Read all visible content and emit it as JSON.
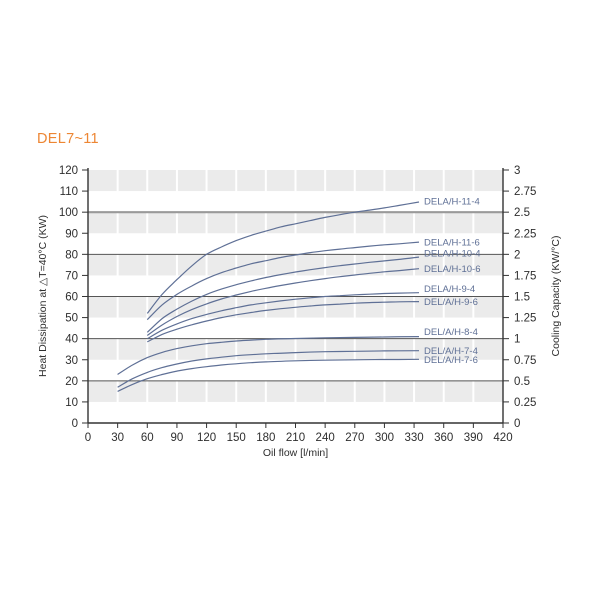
{
  "title": "DEL7~11",
  "title_color": "#ED8633",
  "chart_data": {
    "type": "line",
    "title": "DEL7~11",
    "xlabel": "Oil flow [l/min]",
    "ylabel_left": "Heat Dissipation at △T=40°C (KW)",
    "ylabel_right": "Cooling Capacity (KW/°C)",
    "xlim": [
      0,
      420
    ],
    "ylim_left": [
      0,
      120
    ],
    "ylim_right": [
      0,
      3
    ],
    "x_ticks": [
      0,
      30,
      60,
      90,
      120,
      150,
      180,
      210,
      240,
      270,
      300,
      330,
      360,
      390,
      420
    ],
    "y_left_ticks": [
      0,
      10,
      20,
      30,
      40,
      50,
      60,
      70,
      80,
      90,
      100,
      110,
      120
    ],
    "y_right_ticks": [
      "0",
      "0.25",
      "0.5",
      "0.75",
      "1",
      "1.25",
      "1.5",
      "1.75",
      "2",
      "2.25",
      "2.5",
      "2.75",
      "3"
    ],
    "grid": "banded",
    "band_ranges_kw": [
      [
        10,
        20
      ],
      [
        30,
        40
      ],
      [
        50,
        60
      ],
      [
        70,
        80
      ],
      [
        90,
        100
      ],
      [
        110,
        120
      ]
    ],
    "dark_gridlines_kw": [
      20,
      40,
      60,
      80
    ],
    "heavy_gridline_kw": 100,
    "band_color": "#ebebeb",
    "dark_line_color": "#555555",
    "heavy_line_color": "#9a9a9a",
    "axis_color": "#333333",
    "series_color": "#5f7096",
    "legend_position": "right-of-curve-ends",
    "series": [
      {
        "name": "DELA/H-11-4",
        "label_dy": 0,
        "points": [
          [
            60,
            52
          ],
          [
            75,
            61
          ],
          [
            90,
            68
          ],
          [
            105,
            74.5
          ],
          [
            120,
            80
          ],
          [
            135,
            83.5
          ],
          [
            150,
            86.5
          ],
          [
            165,
            89
          ],
          [
            180,
            91
          ],
          [
            195,
            93
          ],
          [
            210,
            94.5
          ],
          [
            225,
            96
          ],
          [
            240,
            97.5
          ],
          [
            255,
            98.8
          ],
          [
            270,
            100
          ],
          [
            285,
            101
          ],
          [
            300,
            102
          ],
          [
            315,
            103.2
          ],
          [
            335,
            104.8
          ]
        ]
      },
      {
        "name": "DELA/H-11-6",
        "label_dy": 1,
        "points": [
          [
            60,
            49
          ],
          [
            75,
            56
          ],
          [
            90,
            61
          ],
          [
            105,
            65
          ],
          [
            120,
            68.5
          ],
          [
            135,
            71.3
          ],
          [
            150,
            73.5
          ],
          [
            165,
            75.5
          ],
          [
            180,
            77
          ],
          [
            195,
            78.5
          ],
          [
            210,
            79.7
          ],
          [
            225,
            80.8
          ],
          [
            240,
            81.7
          ],
          [
            255,
            82.5
          ],
          [
            270,
            83.2
          ],
          [
            285,
            83.9
          ],
          [
            300,
            84.5
          ],
          [
            315,
            85
          ],
          [
            335,
            85.8
          ]
        ]
      },
      {
        "name": "DELA/H-10-4",
        "label_dy": -3,
        "points": [
          [
            60,
            43
          ],
          [
            75,
            49.5
          ],
          [
            90,
            54
          ],
          [
            105,
            57.8
          ],
          [
            120,
            61
          ],
          [
            135,
            63.5
          ],
          [
            150,
            65.6
          ],
          [
            165,
            67.4
          ],
          [
            180,
            69
          ],
          [
            195,
            70.4
          ],
          [
            210,
            71.6
          ],
          [
            225,
            72.7
          ],
          [
            240,
            73.7
          ],
          [
            255,
            74.6
          ],
          [
            270,
            75.4
          ],
          [
            285,
            76.2
          ],
          [
            300,
            76.9
          ],
          [
            315,
            77.6
          ],
          [
            335,
            78.7
          ]
        ]
      },
      {
        "name": "DELA/H-10-6",
        "label_dy": 1,
        "points": [
          [
            60,
            41.5
          ],
          [
            75,
            46.5
          ],
          [
            90,
            50.5
          ],
          [
            105,
            53.8
          ],
          [
            120,
            56.5
          ],
          [
            135,
            58.8
          ],
          [
            150,
            60.7
          ],
          [
            165,
            62.4
          ],
          [
            180,
            63.9
          ],
          [
            195,
            65.2
          ],
          [
            210,
            66.4
          ],
          [
            225,
            67.5
          ],
          [
            240,
            68.5
          ],
          [
            255,
            69.4
          ],
          [
            270,
            70.2
          ],
          [
            285,
            71
          ],
          [
            300,
            71.7
          ],
          [
            315,
            72.3
          ],
          [
            335,
            73.2
          ]
        ]
      },
      {
        "name": "DELA/H-9-4",
        "label_dy": -3,
        "points": [
          [
            60,
            40
          ],
          [
            75,
            44
          ],
          [
            90,
            47
          ],
          [
            105,
            49.5
          ],
          [
            120,
            51.5
          ],
          [
            135,
            53.2
          ],
          [
            150,
            54.7
          ],
          [
            165,
            56
          ],
          [
            180,
            57
          ],
          [
            195,
            57.9
          ],
          [
            210,
            58.7
          ],
          [
            225,
            59.4
          ],
          [
            240,
            60
          ],
          [
            255,
            60.4
          ],
          [
            270,
            60.8
          ],
          [
            285,
            61.1
          ],
          [
            300,
            61.4
          ],
          [
            315,
            61.6
          ],
          [
            335,
            61.8
          ]
        ]
      },
      {
        "name": "DEL/A/H-9-6",
        "label_dy": 1,
        "points": [
          [
            60,
            38.5
          ],
          [
            75,
            42
          ],
          [
            90,
            44.5
          ],
          [
            105,
            46.6
          ],
          [
            120,
            48.4
          ],
          [
            135,
            50
          ],
          [
            150,
            51.3
          ],
          [
            165,
            52.4
          ],
          [
            180,
            53.4
          ],
          [
            195,
            54.2
          ],
          [
            210,
            54.9
          ],
          [
            225,
            55.5
          ],
          [
            240,
            56
          ],
          [
            255,
            56.4
          ],
          [
            270,
            56.8
          ],
          [
            285,
            57.1
          ],
          [
            300,
            57.3
          ],
          [
            315,
            57.5
          ],
          [
            335,
            57.6
          ]
        ]
      },
      {
        "name": "DEL/A/H-8-4",
        "label_dy": -4,
        "points": [
          [
            30,
            23
          ],
          [
            45,
            27.5
          ],
          [
            60,
            31
          ],
          [
            75,
            33.5
          ],
          [
            90,
            35.3
          ],
          [
            105,
            36.6
          ],
          [
            120,
            37.6
          ],
          [
            135,
            38.3
          ],
          [
            150,
            38.9
          ],
          [
            165,
            39.3
          ],
          [
            180,
            39.7
          ],
          [
            210,
            40.1
          ],
          [
            240,
            40.4
          ],
          [
            270,
            40.6
          ],
          [
            300,
            40.8
          ],
          [
            335,
            41
          ]
        ]
      },
      {
        "name": "DEL/A/H-7-4",
        "label_dy": 1,
        "points": [
          [
            30,
            17
          ],
          [
            45,
            21
          ],
          [
            60,
            24
          ],
          [
            75,
            26.3
          ],
          [
            90,
            28
          ],
          [
            105,
            29.4
          ],
          [
            120,
            30.4
          ],
          [
            135,
            31.2
          ],
          [
            150,
            31.9
          ],
          [
            165,
            32.4
          ],
          [
            180,
            32.8
          ],
          [
            210,
            33.4
          ],
          [
            240,
            33.8
          ],
          [
            270,
            34
          ],
          [
            300,
            34.2
          ],
          [
            335,
            34.3
          ]
        ]
      },
      {
        "name": "DEL/A/H-7-6",
        "label_dy": 1,
        "points": [
          [
            30,
            15
          ],
          [
            45,
            18.3
          ],
          [
            60,
            21
          ],
          [
            75,
            23
          ],
          [
            90,
            24.6
          ],
          [
            105,
            25.8
          ],
          [
            120,
            26.7
          ],
          [
            135,
            27.5
          ],
          [
            150,
            28.1
          ],
          [
            165,
            28.6
          ],
          [
            180,
            29
          ],
          [
            210,
            29.5
          ],
          [
            240,
            29.8
          ],
          [
            270,
            30
          ],
          [
            300,
            30.1
          ],
          [
            335,
            30.2
          ]
        ]
      }
    ]
  }
}
